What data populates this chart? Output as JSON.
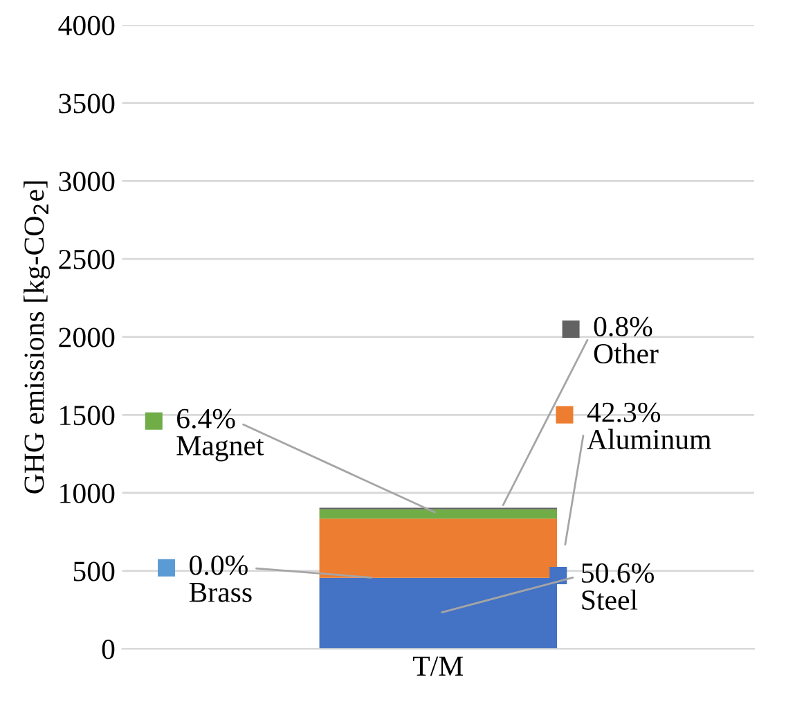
{
  "chart_data": {
    "type": "bar",
    "stacked": true,
    "ylabel": "GHG emissions [kg-CO$_{2}$e]",
    "categories": [
      "T/M"
    ],
    "ylim": [
      0,
      4000
    ],
    "yticks": [
      0,
      500,
      1000,
      1500,
      2000,
      2500,
      3000,
      3500,
      4000
    ],
    "grid": "y",
    "legend": "right",
    "series": [
      {
        "name": "Steel",
        "color": "#4472c4",
        "values": [
          455
        ]
      },
      {
        "name": "Brass",
        "color": "#5b9bd5",
        "values": [
          0
        ]
      },
      {
        "name": "Aluminum",
        "color": "#ed7d31",
        "values": [
          380
        ]
      },
      {
        "name": "Magnet",
        "color": "#70ad47",
        "values": [
          60
        ]
      },
      {
        "name": "Other",
        "color": "#636363",
        "values": [
          10
        ]
      }
    ],
    "annotations": [
      "50.6%",
      "0.0%",
      "42.3%",
      "6.4%",
      "0.8%"
    ]
  }
}
